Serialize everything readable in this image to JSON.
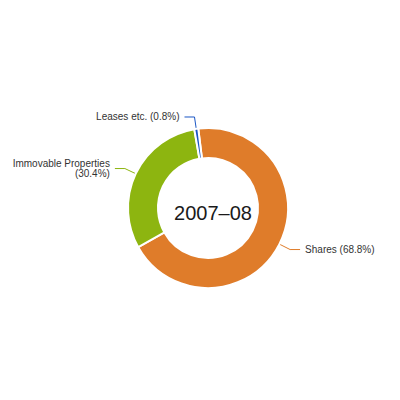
{
  "chart_data": {
    "type": "pie",
    "title": "2007–08",
    "categories": [
      "Shares",
      "Immovable Properties",
      "Leases etc."
    ],
    "values": [
      68.8,
      30.4,
      0.8
    ],
    "colors": [
      "#df7c2a",
      "#8db510",
      "#1a56c4"
    ],
    "data_labels": true,
    "value_labels": [
      "Shares (68.8%)",
      "Immovable Properties\n(30.4%)",
      "Leases etc. (0.8%)"
    ]
  }
}
